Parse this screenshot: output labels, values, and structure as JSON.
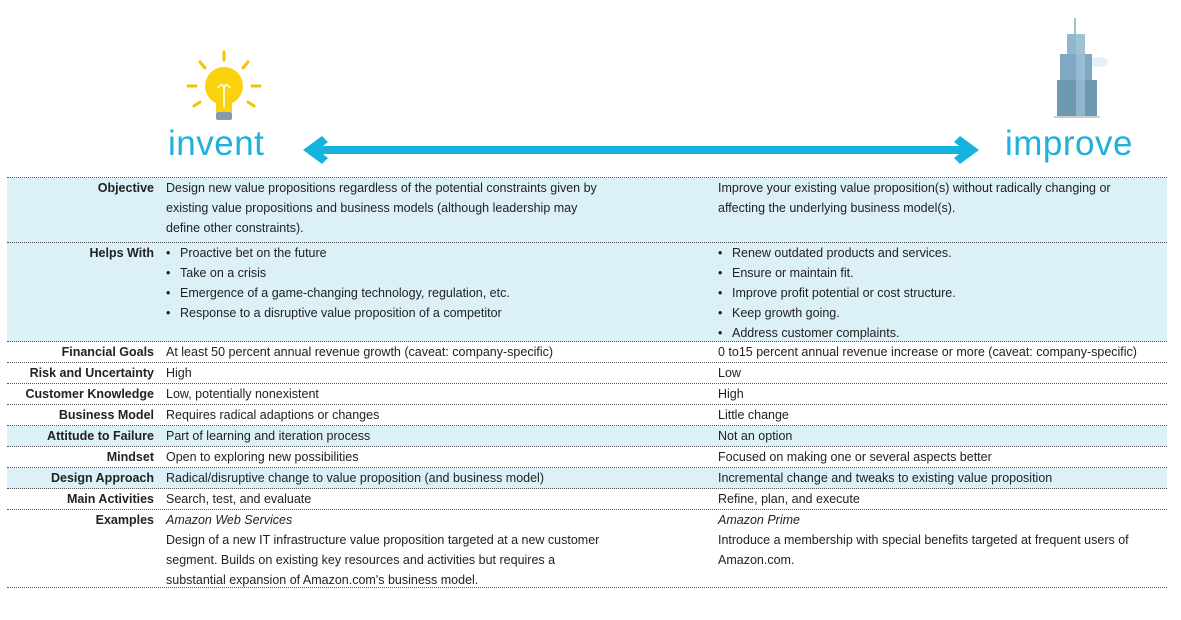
{
  "header": {
    "left": "invent",
    "right": "improve"
  },
  "table": {
    "rows": [
      {
        "label": "Objective",
        "invent": {
          "text": "Design new value propositions regardless of the potential constraints given by existing value propositions and business models (although leadership may define other constraints)."
        },
        "improve": {
          "text": "Improve your existing value proposition(s) without radically changing or affecting the underlying business model(s)."
        }
      },
      {
        "label": "Helps With",
        "invent": {
          "bullets": [
            "Proactive bet on the future",
            "Take on a crisis",
            "Emergence of a game-changing technology, regulation, etc.",
            "Response to a disruptive value proposition of a competitor"
          ]
        },
        "improve": {
          "bullets": [
            "Renew outdated products and services.",
            "Ensure or maintain fit.",
            "Improve profit potential or cost structure.",
            "Keep growth going.",
            "Address customer complaints."
          ]
        }
      },
      {
        "label": "Financial Goals",
        "invent": {
          "text": "At least 50 percent annual revenue growth (caveat: company-specific)"
        },
        "improve": {
          "text": "0 to15 percent annual revenue increase or more (caveat: company-specific)"
        }
      },
      {
        "label": "Risk and Uncertainty",
        "invent": {
          "text": "High"
        },
        "improve": {
          "text": "Low"
        }
      },
      {
        "label": "Customer Knowledge",
        "invent": {
          "text": "Low, potentially nonexistent"
        },
        "improve": {
          "text": "High"
        }
      },
      {
        "label": "Business Model",
        "invent": {
          "text": "Requires radical adaptions or changes"
        },
        "improve": {
          "text": "Little change"
        }
      },
      {
        "label": "Attitude to Failure",
        "invent": {
          "text": "Part of learning and iteration process"
        },
        "improve": {
          "text": "Not an option"
        }
      },
      {
        "label": "Mindset",
        "invent": {
          "text": "Open to exploring new possibilities"
        },
        "improve": {
          "text": "Focused on making one or several aspects better"
        }
      },
      {
        "label": "Design Approach",
        "invent": {
          "text": "Radical/disruptive change to value proposition (and business model)"
        },
        "improve": {
          "text": "Incremental change and tweaks to existing value proposition"
        }
      },
      {
        "label": "Main Activities",
        "invent": {
          "text": "Search, test, and evaluate"
        },
        "improve": {
          "text": "Refine, plan, and execute"
        }
      },
      {
        "label": "Examples",
        "invent": {
          "name": "Amazon Web Services",
          "text": "Design of a new IT infrastructure value proposition targeted at a new customer segment. Builds on existing key resources and activities but requires a substantial expansion of Amazon.com's business model."
        },
        "improve": {
          "name": "Amazon Prime",
          "text": "Introduce a membership with special benefits targeted at frequent users of Amazon.com."
        }
      }
    ]
  }
}
